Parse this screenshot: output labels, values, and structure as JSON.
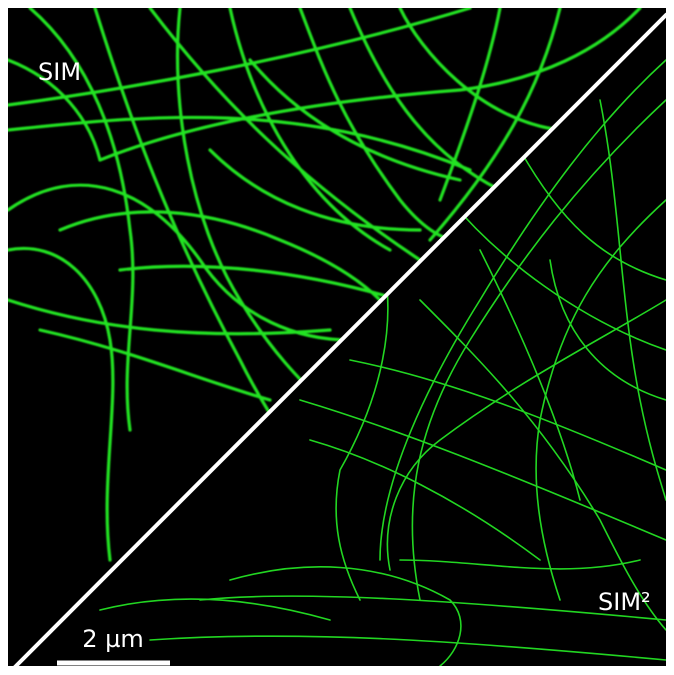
{
  "labels": {
    "top_left": "SIM",
    "bottom_right": "SIM²"
  },
  "scale_bar": {
    "label": "2 µm"
  }
}
